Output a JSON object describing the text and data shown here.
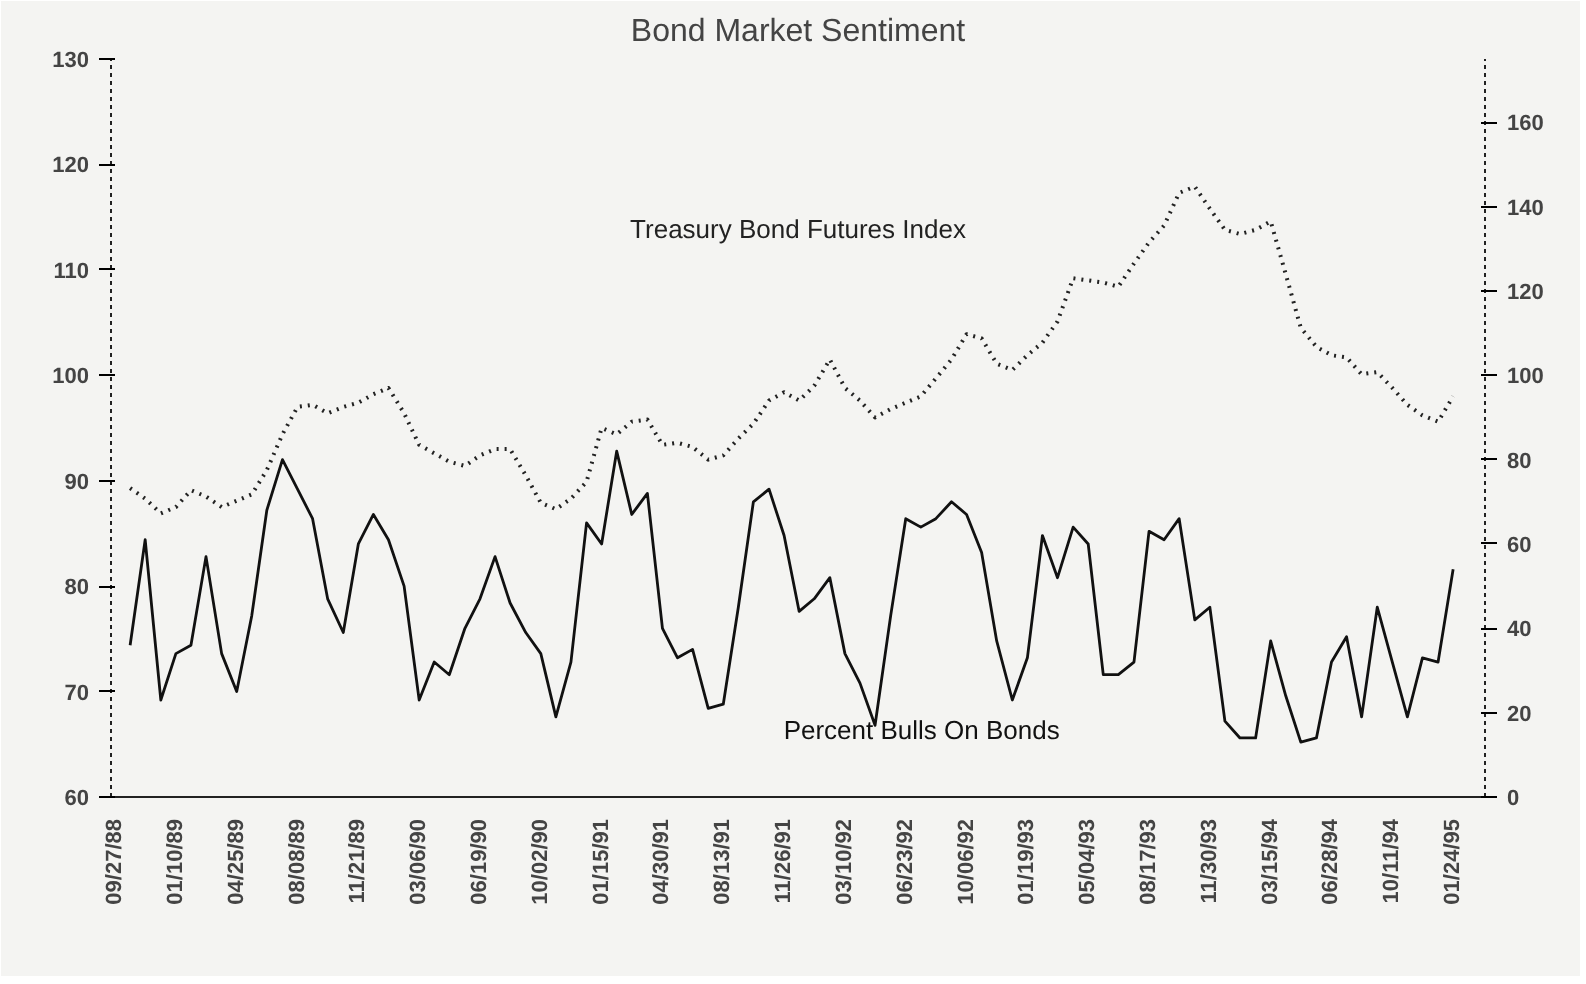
{
  "chart_data": {
    "type": "line",
    "title": "Bond Market Sentiment",
    "x": [
      "1988-10-23",
      "1988-11-18",
      "1988-12-15",
      "1989-01-10",
      "1989-02-05",
      "1989-03-03",
      "1989-03-30",
      "1989-04-25",
      "1989-05-21",
      "1989-06-16",
      "1989-07-13",
      "1989-08-08",
      "1989-09-03",
      "1989-09-29",
      "1989-10-26",
      "1989-11-21",
      "1989-12-17",
      "1990-01-12",
      "1990-02-08",
      "1990-03-06",
      "1990-04-01",
      "1990-04-27",
      "1990-05-24",
      "1990-06-19",
      "1990-07-15",
      "1990-08-10",
      "1990-09-06",
      "1990-10-02",
      "1990-10-28",
      "1990-11-23",
      "1990-12-20",
      "1991-01-15",
      "1991-02-10",
      "1991-03-08",
      "1991-04-04",
      "1991-04-30",
      "1991-05-26",
      "1991-06-21",
      "1991-07-18",
      "1991-08-13",
      "1991-09-08",
      "1991-10-04",
      "1991-10-31",
      "1991-11-26",
      "1991-12-22",
      "1992-01-17",
      "1992-02-13",
      "1992-03-10",
      "1992-04-05",
      "1992-05-01",
      "1992-05-28",
      "1992-06-23",
      "1992-07-19",
      "1992-08-14",
      "1992-09-10",
      "1992-10-06",
      "1992-11-01",
      "1992-11-27",
      "1992-12-24",
      "1993-01-19",
      "1993-02-14",
      "1993-03-12",
      "1993-04-08",
      "1993-05-04",
      "1993-05-30",
      "1993-06-25",
      "1993-07-22",
      "1993-08-17",
      "1993-09-12",
      "1993-10-08",
      "1993-11-04",
      "1993-11-30",
      "1993-12-26",
      "1994-01-21",
      "1994-02-17",
      "1994-03-15",
      "1994-04-10",
      "1994-05-06",
      "1994-06-02",
      "1994-06-28",
      "1994-07-24",
      "1994-08-19",
      "1994-09-15",
      "1994-10-11",
      "1994-11-06",
      "1994-12-02",
      "1994-12-29",
      "1995-01-24"
    ],
    "xlim": [
      "1988-09-20",
      "1995-03-20"
    ],
    "xticks": [
      {
        "value": "1988-09-27",
        "label": "09/27/88"
      },
      {
        "value": "1989-01-10",
        "label": "01/10/89"
      },
      {
        "value": "1989-04-25",
        "label": "04/25/89"
      },
      {
        "value": "1989-08-08",
        "label": "08/08/89"
      },
      {
        "value": "1989-11-21",
        "label": "11/21/89"
      },
      {
        "value": "1990-03-06",
        "label": "03/06/90"
      },
      {
        "value": "1990-06-19",
        "label": "06/19/90"
      },
      {
        "value": "1990-10-02",
        "label": "10/02/90"
      },
      {
        "value": "1991-01-15",
        "label": "01/15/91"
      },
      {
        "value": "1991-04-30",
        "label": "04/30/91"
      },
      {
        "value": "1991-08-13",
        "label": "08/13/91"
      },
      {
        "value": "1991-11-26",
        "label": "11/26/91"
      },
      {
        "value": "1992-03-10",
        "label": "03/10/92"
      },
      {
        "value": "1992-06-23",
        "label": "06/23/92"
      },
      {
        "value": "1992-10-06",
        "label": "10/06/92"
      },
      {
        "value": "1993-01-19",
        "label": "01/19/93"
      },
      {
        "value": "1993-05-04",
        "label": "05/04/93"
      },
      {
        "value": "1993-08-17",
        "label": "08/17/93"
      },
      {
        "value": "1993-11-30",
        "label": "11/30/93"
      },
      {
        "value": "1994-03-15",
        "label": "03/15/94"
      },
      {
        "value": "1994-06-28",
        "label": "06/28/94"
      },
      {
        "value": "1994-10-11",
        "label": "10/11/94"
      },
      {
        "value": "1995-01-24",
        "label": "01/24/95"
      }
    ],
    "ylim": [
      60,
      130
    ],
    "yticks": [
      60,
      70,
      80,
      90,
      100,
      110,
      120,
      130
    ],
    "y2lim": [
      0,
      175
    ],
    "y2ticks": [
      0,
      20,
      40,
      60,
      80,
      100,
      120,
      140,
      160
    ],
    "grid": false,
    "series": [
      {
        "name": "Treasury Bond Futures Index",
        "color": "#222222",
        "line_style": "dotted",
        "values": [
          89.3,
          88.3,
          86.9,
          87.5,
          89.1,
          88.5,
          87.5,
          88.1,
          88.7,
          91.0,
          94.4,
          97.0,
          97.2,
          96.4,
          97.0,
          97.4,
          98.2,
          98.8,
          96.4,
          93.4,
          92.6,
          91.8,
          91.4,
          92.4,
          93.0,
          93.0,
          90.5,
          87.9,
          87.3,
          88.3,
          89.9,
          95.0,
          94.4,
          95.6,
          95.8,
          93.4,
          93.6,
          93.2,
          92.0,
          92.4,
          94.0,
          95.4,
          97.6,
          98.4,
          97.6,
          99.0,
          101.5,
          98.8,
          97.6,
          96.0,
          96.8,
          97.4,
          98.0,
          99.7,
          101.5,
          103.9,
          103.5,
          101.1,
          100.5,
          101.9,
          103.1,
          105.1,
          109.2,
          109.0,
          108.8,
          108.4,
          110.6,
          112.6,
          114.2,
          117.3,
          117.9,
          115.8,
          113.8,
          113.4,
          113.8,
          114.6,
          109.6,
          104.5,
          102.7,
          101.9,
          101.7,
          100.1,
          100.3,
          98.8,
          97.2,
          96.2,
          95.6,
          98.0
        ]
      },
      {
        "name": "Percent Bulls On Bonds",
        "color": "#111111",
        "line_style": "solid",
        "axis": "y2",
        "values": [
          36,
          61,
          23,
          34,
          36,
          57,
          34,
          25,
          43,
          68,
          80,
          73,
          66,
          47,
          39,
          60,
          67,
          61,
          50,
          23,
          32,
          29,
          40,
          47,
          57,
          46,
          39,
          34,
          19,
          32,
          65,
          60,
          82,
          67,
          72,
          40,
          33,
          35,
          21,
          22,
          45,
          70,
          73,
          62,
          44,
          47,
          52,
          34,
          27,
          17,
          43,
          66,
          64,
          66,
          70,
          67,
          58,
          37,
          23,
          33,
          62,
          52,
          64,
          60,
          29,
          29,
          32,
          63,
          61,
          66,
          42,
          45,
          18,
          14,
          14,
          37,
          24,
          13,
          14,
          32,
          38,
          19,
          45,
          32,
          19,
          33,
          32,
          54
        ]
      }
    ]
  }
}
